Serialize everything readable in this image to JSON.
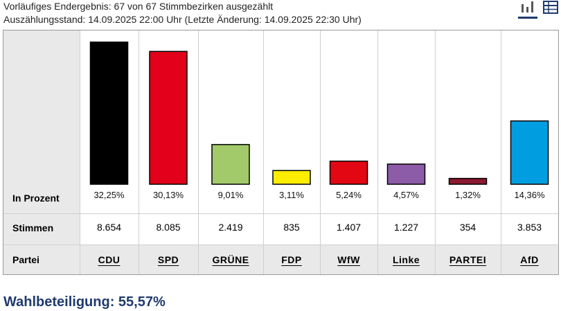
{
  "header": {
    "line1": "Vorläufiges Endergebnis: 67 von 67 Stimmbezirken ausgezählt",
    "line2": "Auszählungsstand: 14.09.2025 22:00 Uhr (Letzte Änderung: 14.09.2025 22:30 Uhr)"
  },
  "view_toggle": {
    "chart_icon": "bar-chart-icon",
    "table_icon": "table-icon",
    "active": "chart",
    "active_color": "#1f3a6e"
  },
  "row_labels": {
    "percent": "In Prozent",
    "votes": "Stimmen",
    "party": "Partei"
  },
  "chart_data": {
    "type": "bar",
    "categories": [
      "CDU",
      "SPD",
      "GRÜNE",
      "FDP",
      "WfW",
      "Linke",
      "PARTEI",
      "AfD"
    ],
    "values": [
      32.25,
      30.13,
      9.01,
      3.11,
      5.24,
      4.57,
      1.32,
      14.36
    ],
    "value_labels": [
      "32,25%",
      "30,13%",
      "9,01%",
      "3,11%",
      "5,24%",
      "4,57%",
      "1,32%",
      "14,36%"
    ],
    "votes": [
      "8.654",
      "8.085",
      "2.419",
      "835",
      "1.407",
      "1.227",
      "354",
      "3.853"
    ],
    "colors": [
      "#000000",
      "#e2001a",
      "#a2c96a",
      "#ffed00",
      "#e30613",
      "#8c5ca8",
      "#8b1a30",
      "#009ee0"
    ],
    "ylim": [
      0,
      33
    ]
  },
  "turnout": "Wahlbeteiligung: 55,57%"
}
